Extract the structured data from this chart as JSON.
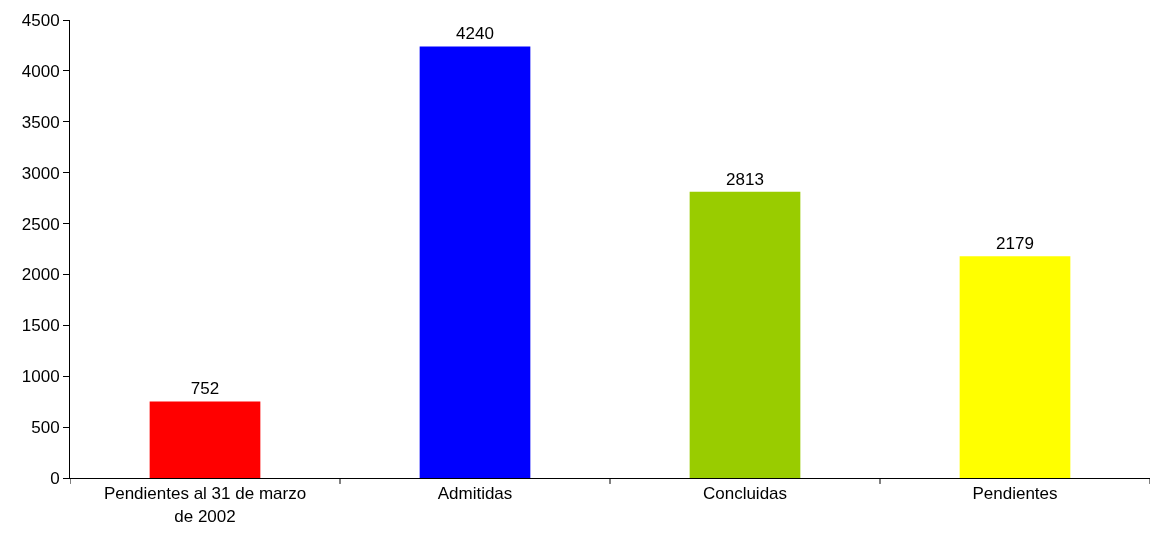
{
  "chart_data": {
    "type": "bar",
    "categories": [
      "Pendientes al 31 de marzo de 2002",
      "Admitidas",
      "Concluidas",
      "Pendientes"
    ],
    "values": [
      752,
      4240,
      2813,
      2179
    ],
    "colors": [
      "#ff0000",
      "#0000ff",
      "#99cc00",
      "#ffff00"
    ],
    "ylim": [
      0,
      4500
    ],
    "yticks": [
      0,
      500,
      1000,
      1500,
      2000,
      2500,
      3000,
      3500,
      4000,
      4500
    ],
    "data_labels": true,
    "legend": false
  }
}
